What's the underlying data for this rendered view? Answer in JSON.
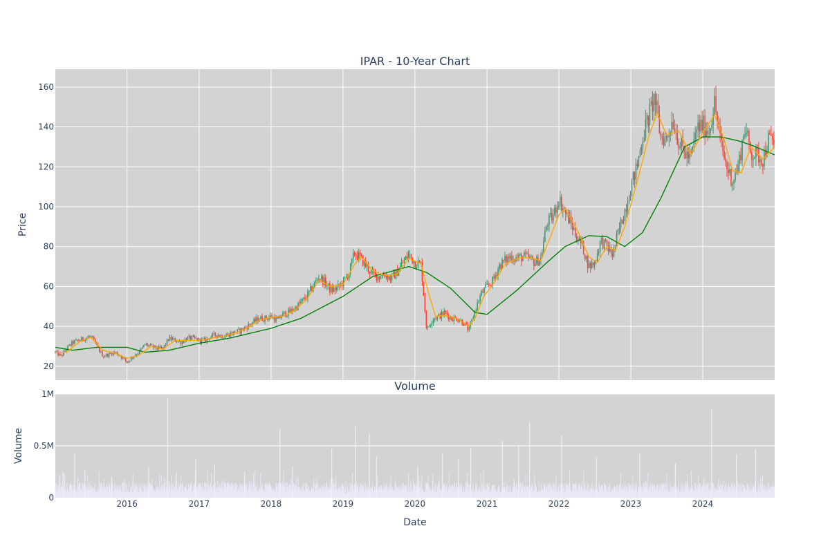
{
  "chart_data": [
    {
      "type": "candlestick",
      "title": "IPAR - 10-Year Chart",
      "ylabel": "Price",
      "xlabel": "",
      "x_range": [
        "2015-01-02",
        "2024-12-31"
      ],
      "ylim": [
        13,
        169
      ],
      "yticks": [
        20,
        40,
        60,
        80,
        100,
        120,
        140,
        160
      ],
      "grid": true,
      "legend": "none",
      "colors": {
        "up": "#3d9970",
        "down": "#ff4136",
        "short_ma": "#ffa500",
        "long_ma": "#008000",
        "plot_bg": "#d3d3d3"
      },
      "price_path": [
        [
          "2015-01-02",
          27
        ],
        [
          "2015-02-01",
          25
        ],
        [
          "2015-03-01",
          29
        ],
        [
          "2015-04-01",
          32
        ],
        [
          "2015-05-01",
          33
        ],
        [
          "2015-06-01",
          34
        ],
        [
          "2015-07-01",
          35
        ],
        [
          "2015-08-01",
          30
        ],
        [
          "2015-09-01",
          25
        ],
        [
          "2015-10-01",
          26
        ],
        [
          "2015-11-01",
          27
        ],
        [
          "2015-12-01",
          25
        ],
        [
          "2016-01-01",
          22
        ],
        [
          "2016-02-01",
          25
        ],
        [
          "2016-03-01",
          27
        ],
        [
          "2016-04-01",
          31
        ],
        [
          "2016-05-01",
          30
        ],
        [
          "2016-06-01",
          29
        ],
        [
          "2016-07-01",
          29
        ],
        [
          "2016-08-01",
          34
        ],
        [
          "2016-09-01",
          33
        ],
        [
          "2016-10-01",
          32
        ],
        [
          "2016-11-01",
          34
        ],
        [
          "2016-12-01",
          34
        ],
        [
          "2017-01-01",
          33
        ],
        [
          "2017-02-01",
          33
        ],
        [
          "2017-03-01",
          35
        ],
        [
          "2017-04-01",
          36
        ],
        [
          "2017-05-01",
          35
        ],
        [
          "2017-06-01",
          36
        ],
        [
          "2017-07-01",
          37
        ],
        [
          "2017-08-01",
          38
        ],
        [
          "2017-09-01",
          40
        ],
        [
          "2017-10-01",
          42
        ],
        [
          "2017-11-01",
          44
        ],
        [
          "2017-12-01",
          44
        ],
        [
          "2018-01-01",
          45
        ],
        [
          "2018-02-01",
          43
        ],
        [
          "2018-03-01",
          46
        ],
        [
          "2018-04-01",
          47
        ],
        [
          "2018-05-01",
          49
        ],
        [
          "2018-06-01",
          52
        ],
        [
          "2018-07-01",
          55
        ],
        [
          "2018-08-01",
          60
        ],
        [
          "2018-09-01",
          65
        ],
        [
          "2018-10-01",
          62
        ],
        [
          "2018-11-01",
          58
        ],
        [
          "2018-12-01",
          59
        ],
        [
          "2019-01-01",
          62
        ],
        [
          "2019-02-01",
          67
        ],
        [
          "2019-03-01",
          77
        ],
        [
          "2019-04-01",
          74
        ],
        [
          "2019-05-01",
          70
        ],
        [
          "2019-06-01",
          66
        ],
        [
          "2019-07-01",
          65
        ],
        [
          "2019-08-01",
          66
        ],
        [
          "2019-09-01",
          64
        ],
        [
          "2019-10-01",
          67
        ],
        [
          "2019-11-01",
          72
        ],
        [
          "2019-12-01",
          76
        ],
        [
          "2020-01-01",
          72
        ],
        [
          "2020-02-01",
          71
        ],
        [
          "2020-03-01",
          38
        ],
        [
          "2020-04-01",
          44
        ],
        [
          "2020-05-01",
          45
        ],
        [
          "2020-06-01",
          47
        ],
        [
          "2020-07-01",
          44
        ],
        [
          "2020-08-01",
          44
        ],
        [
          "2020-09-01",
          42
        ],
        [
          "2020-10-01",
          38
        ],
        [
          "2020-11-01",
          48
        ],
        [
          "2020-12-01",
          56
        ],
        [
          "2021-01-01",
          60
        ],
        [
          "2021-02-01",
          63
        ],
        [
          "2021-03-01",
          70
        ],
        [
          "2021-04-01",
          73
        ],
        [
          "2021-05-01",
          75
        ],
        [
          "2021-06-01",
          74
        ],
        [
          "2021-07-01",
          75
        ],
        [
          "2021-08-01",
          74
        ],
        [
          "2021-09-01",
          72
        ],
        [
          "2021-10-01",
          74
        ],
        [
          "2021-11-01",
          92
        ],
        [
          "2021-12-01",
          95
        ],
        [
          "2022-01-01",
          104
        ],
        [
          "2022-02-01",
          97
        ],
        [
          "2022-03-01",
          92
        ],
        [
          "2022-04-01",
          85
        ],
        [
          "2022-05-01",
          80
        ],
        [
          "2022-06-01",
          70
        ],
        [
          "2022-07-01",
          72
        ],
        [
          "2022-08-01",
          83
        ],
        [
          "2022-09-01",
          80
        ],
        [
          "2022-10-01",
          76
        ],
        [
          "2022-11-01",
          88
        ],
        [
          "2022-12-01",
          98
        ],
        [
          "2023-01-01",
          110
        ],
        [
          "2023-02-01",
          120
        ],
        [
          "2023-03-01",
          135
        ],
        [
          "2023-04-01",
          145
        ],
        [
          "2023-05-01",
          155
        ],
        [
          "2023-06-01",
          135
        ],
        [
          "2023-07-01",
          134
        ],
        [
          "2023-08-01",
          144
        ],
        [
          "2023-09-01",
          133
        ],
        [
          "2023-10-01",
          127
        ],
        [
          "2023-11-01",
          124
        ],
        [
          "2023-12-01",
          139
        ],
        [
          "2024-01-01",
          141
        ],
        [
          "2024-02-01",
          138
        ],
        [
          "2024-03-01",
          152
        ],
        [
          "2024-04-01",
          132
        ],
        [
          "2024-05-01",
          120
        ],
        [
          "2024-06-01",
          113
        ],
        [
          "2024-07-01",
          121
        ],
        [
          "2024-08-01",
          140
        ],
        [
          "2024-09-01",
          127
        ],
        [
          "2024-10-01",
          126
        ],
        [
          "2024-11-01",
          124
        ],
        [
          "2024-12-01",
          134
        ],
        [
          "2024-12-31",
          132
        ]
      ],
      "short_ma": [
        [
          "2015-01-02",
          27
        ],
        [
          "2015-03-01",
          27
        ],
        [
          "2015-05-01",
          32
        ],
        [
          "2015-07-01",
          34.5
        ],
        [
          "2015-09-01",
          28
        ],
        [
          "2015-11-01",
          26.5
        ],
        [
          "2016-01-01",
          24
        ],
        [
          "2016-03-01",
          25.5
        ],
        [
          "2016-05-01",
          30
        ],
        [
          "2016-07-01",
          28.5
        ],
        [
          "2016-09-01",
          33
        ],
        [
          "2016-11-01",
          33
        ],
        [
          "2017-01-01",
          33
        ],
        [
          "2017-03-01",
          34
        ],
        [
          "2017-05-01",
          35
        ],
        [
          "2017-07-01",
          36.5
        ],
        [
          "2017-09-01",
          39
        ],
        [
          "2017-11-01",
          43
        ],
        [
          "2018-01-01",
          44.5
        ],
        [
          "2018-03-01",
          45
        ],
        [
          "2018-05-01",
          48
        ],
        [
          "2018-07-01",
          53.5
        ],
        [
          "2018-09-01",
          63
        ],
        [
          "2018-11-01",
          60
        ],
        [
          "2019-01-01",
          61
        ],
        [
          "2019-03-01",
          71
        ],
        [
          "2019-04-01",
          75
        ],
        [
          "2019-06-01",
          68
        ],
        [
          "2019-08-01",
          65.5
        ],
        [
          "2019-10-01",
          66
        ],
        [
          "2019-12-01",
          74
        ],
        [
          "2020-02-01",
          71.5
        ],
        [
          "2020-03-15",
          55
        ],
        [
          "2020-04-15",
          45
        ],
        [
          "2020-06-01",
          45.5
        ],
        [
          "2020-08-01",
          44
        ],
        [
          "2020-10-01",
          40
        ],
        [
          "2020-11-01",
          44
        ],
        [
          "2020-12-15",
          55
        ],
        [
          "2021-02-01",
          61
        ],
        [
          "2021-04-01",
          71
        ],
        [
          "2021-06-01",
          74
        ],
        [
          "2021-08-01",
          74.5
        ],
        [
          "2021-10-01",
          73
        ],
        [
          "2021-11-15",
          84
        ],
        [
          "2022-01-01",
          96
        ],
        [
          "2022-02-01",
          99
        ],
        [
          "2022-04-01",
          89
        ],
        [
          "2022-06-01",
          75
        ],
        [
          "2022-07-15",
          72
        ],
        [
          "2022-09-01",
          80
        ],
        [
          "2022-10-15",
          78
        ],
        [
          "2022-12-01",
          90
        ],
        [
          "2023-02-01",
          112
        ],
        [
          "2023-04-01",
          135
        ],
        [
          "2023-05-15",
          147
        ],
        [
          "2023-07-01",
          136
        ],
        [
          "2023-09-01",
          138
        ],
        [
          "2023-11-01",
          126
        ],
        [
          "2024-01-01",
          137
        ],
        [
          "2024-03-01",
          146
        ],
        [
          "2024-04-15",
          135
        ],
        [
          "2024-06-01",
          118
        ],
        [
          "2024-07-15",
          117
        ],
        [
          "2024-09-01",
          130
        ],
        [
          "2024-11-01",
          124
        ],
        [
          "2024-12-31",
          130
        ]
      ],
      "long_ma": [
        [
          "2015-01-02",
          29.5
        ],
        [
          "2015-04-01",
          28
        ],
        [
          "2015-08-01",
          29.5
        ],
        [
          "2016-01-01",
          29.5
        ],
        [
          "2016-04-01",
          27
        ],
        [
          "2016-08-01",
          28
        ],
        [
          "2017-01-01",
          31.5
        ],
        [
          "2017-06-01",
          34
        ],
        [
          "2018-01-01",
          39
        ],
        [
          "2018-06-01",
          44
        ],
        [
          "2019-01-01",
          55
        ],
        [
          "2019-06-01",
          65
        ],
        [
          "2019-12-01",
          70
        ],
        [
          "2020-03-01",
          67
        ],
        [
          "2020-07-01",
          59
        ],
        [
          "2020-11-01",
          47
        ],
        [
          "2021-01-01",
          46
        ],
        [
          "2021-06-01",
          58
        ],
        [
          "2021-11-01",
          72
        ],
        [
          "2022-02-01",
          80
        ],
        [
          "2022-06-01",
          85.5
        ],
        [
          "2022-09-01",
          85
        ],
        [
          "2022-12-01",
          80
        ],
        [
          "2023-03-01",
          87
        ],
        [
          "2023-06-01",
          104
        ],
        [
          "2023-10-01",
          130
        ],
        [
          "2024-01-01",
          135
        ],
        [
          "2024-04-01",
          135
        ],
        [
          "2024-07-01",
          133
        ],
        [
          "2024-09-01",
          131
        ],
        [
          "2024-12-31",
          126
        ]
      ]
    },
    {
      "type": "bar",
      "title": "Volume",
      "xlabel": "Date",
      "ylabel": "Volume",
      "ylim": [
        0,
        1000000
      ],
      "yticks": [
        0,
        500000,
        1000000
      ],
      "ytick_labels": [
        "0",
        "0.5M",
        "1M"
      ],
      "xtick_labels": [
        "2016",
        "2017",
        "2018",
        "2019",
        "2020",
        "2021",
        "2022",
        "2023",
        "2024"
      ],
      "bar_color": "#e8e8f8",
      "baseline_volume": 110000,
      "volume_spikes": [
        [
          "2015-02-10",
          250000
        ],
        [
          "2015-04-10",
          420000
        ],
        [
          "2015-06-01",
          270000
        ],
        [
          "2015-10-15",
          200000
        ],
        [
          "2016-04-20",
          290000
        ],
        [
          "2016-07-25",
          960000
        ],
        [
          "2016-12-15",
          370000
        ],
        [
          "2017-03-20",
          320000
        ],
        [
          "2017-08-20",
          250000
        ],
        [
          "2018-02-15",
          660000
        ],
        [
          "2018-04-20",
          300000
        ],
        [
          "2018-11-05",
          470000
        ],
        [
          "2019-03-05",
          690000
        ],
        [
          "2019-05-15",
          620000
        ],
        [
          "2019-06-20",
          400000
        ],
        [
          "2020-01-15",
          300000
        ],
        [
          "2020-05-20",
          430000
        ],
        [
          "2020-08-10",
          370000
        ],
        [
          "2020-10-10",
          480000
        ],
        [
          "2021-03-20",
          550000
        ],
        [
          "2021-06-10",
          510000
        ],
        [
          "2021-08-05",
          730000
        ],
        [
          "2022-01-15",
          600000
        ],
        [
          "2022-07-10",
          390000
        ],
        [
          "2023-02-15",
          420000
        ],
        [
          "2023-08-15",
          330000
        ],
        [
          "2024-02-15",
          850000
        ],
        [
          "2024-06-20",
          420000
        ],
        [
          "2024-09-25",
          470000
        ]
      ]
    }
  ]
}
